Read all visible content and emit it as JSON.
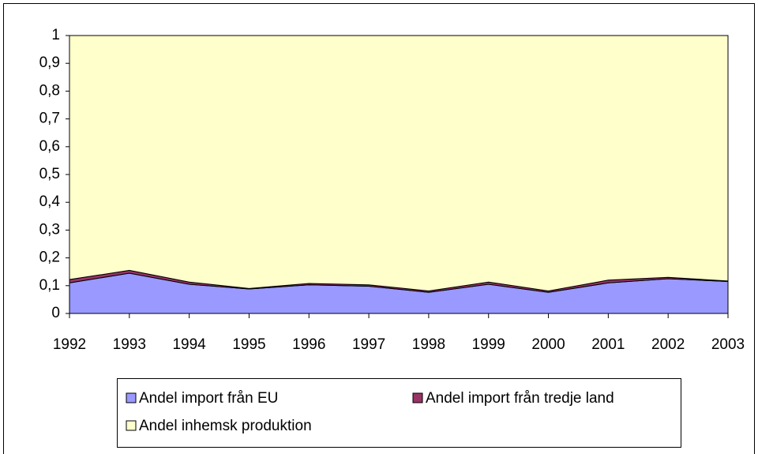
{
  "chart_data": {
    "type": "stacked-area",
    "categories": [
      "1992",
      "1993",
      "1994",
      "1995",
      "1996",
      "1997",
      "1998",
      "1999",
      "2000",
      "2001",
      "2002",
      "2003"
    ],
    "series": [
      {
        "name": "Andel import från EU",
        "color": "#9999ff",
        "values": [
          0.11,
          0.145,
          0.105,
          0.088,
          0.103,
          0.098,
          0.076,
          0.105,
          0.076,
          0.11,
          0.125,
          0.115
        ]
      },
      {
        "name": "Andel import från tredje land",
        "color": "#993366",
        "values": [
          0.012,
          0.01,
          0.008,
          0.002,
          0.005,
          0.005,
          0.005,
          0.008,
          0.005,
          0.01,
          0.005,
          0.002
        ]
      },
      {
        "name": "Andel inhemsk produktion",
        "color": "#ffffcc",
        "values": [
          0.878,
          0.845,
          0.887,
          0.91,
          0.892,
          0.897,
          0.919,
          0.887,
          0.919,
          0.88,
          0.87,
          0.883
        ]
      }
    ],
    "ylim": [
      0,
      1
    ],
    "yticks": [
      0,
      {
        "value": 0.1,
        "label": "0,1"
      },
      {
        "value": 0.2,
        "label": "0,2"
      },
      {
        "value": 0.3,
        "label": "0,3"
      },
      {
        "value": 0.4,
        "label": "0,4"
      },
      {
        "value": 0.5,
        "label": "0,5"
      },
      {
        "value": 0.6,
        "label": "0,6"
      },
      {
        "value": 0.7,
        "label": "0,7"
      },
      {
        "value": 0.8,
        "label": "0,8"
      },
      {
        "value": 0.9,
        "label": "0,9"
      },
      1
    ],
    "legend": "bottom"
  }
}
